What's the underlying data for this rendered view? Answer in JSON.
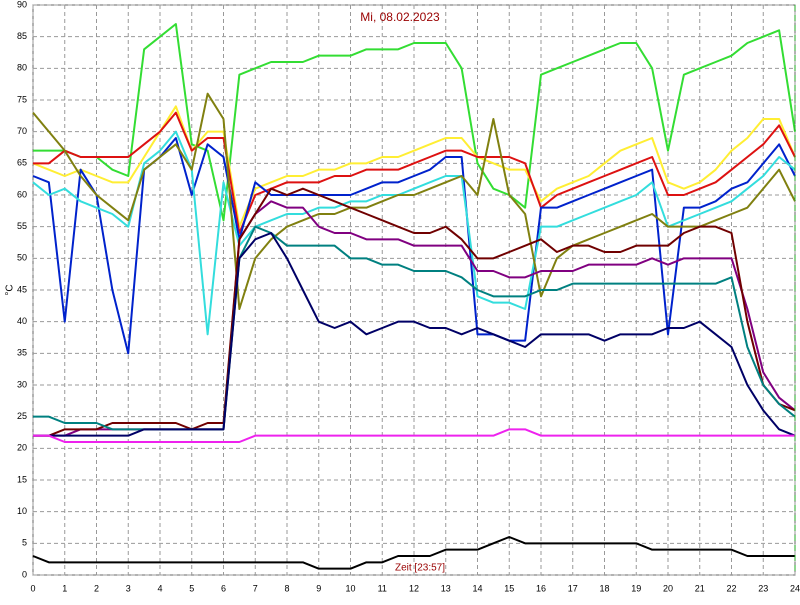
{
  "chart_data": {
    "type": "line",
    "title": "Mi, 08.02.2023",
    "y_label": "°C",
    "annotation": "Zeit [23:57]",
    "x": [
      0,
      0.5,
      1,
      1.5,
      2,
      2.5,
      3,
      3.5,
      4,
      4.5,
      5,
      5.5,
      6,
      6.5,
      7,
      7.5,
      8,
      8.5,
      9,
      9.5,
      10,
      10.5,
      11,
      11.5,
      12,
      12.5,
      13,
      13.5,
      14,
      14.5,
      15,
      15.5,
      16,
      16.5,
      17,
      17.5,
      18,
      18.5,
      19,
      19.5,
      20,
      20.5,
      21,
      21.5,
      22,
      22.5,
      23,
      23.5,
      24
    ],
    "xlim": [
      0,
      24
    ],
    "xticks": [
      0,
      1,
      2,
      3,
      4,
      5,
      6,
      7,
      8,
      9,
      10,
      11,
      12,
      13,
      14,
      15,
      16,
      17,
      18,
      19,
      20,
      21,
      22,
      23,
      24
    ],
    "ylim": [
      0,
      90
    ],
    "yticks": [
      0,
      5,
      10,
      15,
      20,
      25,
      30,
      35,
      40,
      45,
      50,
      55,
      60,
      65,
      70,
      75,
      80,
      85,
      90
    ],
    "grid": true,
    "series": [
      {
        "color": "#33dd33",
        "values": [
          67,
          67,
          67,
          66,
          66,
          64,
          63,
          83,
          85,
          87,
          68,
          67,
          56,
          79,
          80,
          81,
          81,
          81,
          82,
          82,
          82,
          83,
          83,
          83,
          84,
          84,
          84,
          80,
          65,
          61,
          60,
          58,
          79,
          80,
          81,
          82,
          83,
          84,
          84,
          80,
          67,
          79,
          80,
          81,
          82,
          84,
          85,
          86,
          70
        ]
      },
      {
        "color": "#ffee33",
        "values": [
          65,
          64,
          63,
          64,
          63,
          62,
          62,
          66,
          70,
          74,
          67,
          70,
          70,
          55,
          61,
          62,
          63,
          63,
          64,
          64,
          65,
          65,
          66,
          66,
          67,
          68,
          69,
          69,
          66,
          65,
          64,
          64,
          59,
          61,
          62,
          63,
          65,
          67,
          68,
          69,
          62,
          61,
          62,
          64,
          67,
          69,
          72,
          72,
          66
        ]
      },
      {
        "color": "#dd1111",
        "values": [
          65,
          65,
          67,
          66,
          66,
          66,
          66,
          68,
          70,
          73,
          67,
          69,
          69,
          54,
          60,
          61,
          62,
          62,
          62,
          63,
          63,
          64,
          64,
          64,
          65,
          66,
          67,
          67,
          66,
          66,
          66,
          65,
          58,
          60,
          61,
          62,
          63,
          64,
          65,
          66,
          60,
          60,
          61,
          62,
          64,
          66,
          68,
          71,
          66
        ]
      },
      {
        "color": "#0022cc",
        "values": [
          63,
          62,
          40,
          64,
          60,
          45,
          35,
          64,
          66,
          69,
          60,
          68,
          66,
          53,
          62,
          60,
          60,
          60,
          60,
          60,
          60,
          61,
          62,
          62,
          63,
          64,
          66,
          66,
          38,
          38,
          37,
          37,
          58,
          58,
          59,
          60,
          61,
          62,
          63,
          64,
          38,
          58,
          58,
          59,
          61,
          62,
          65,
          68,
          63
        ]
      },
      {
        "color": "#33dddd",
        "values": [
          62,
          60,
          61,
          59,
          58,
          57,
          55,
          65,
          67,
          70,
          64,
          38,
          62,
          52,
          55,
          56,
          57,
          57,
          58,
          58,
          59,
          59,
          60,
          60,
          61,
          62,
          63,
          63,
          44,
          43,
          43,
          42,
          55,
          55,
          56,
          57,
          58,
          59,
          60,
          62,
          55,
          56,
          57,
          58,
          59,
          61,
          63,
          66,
          64
        ]
      },
      {
        "color": "#808010",
        "values": [
          73,
          70,
          67,
          63,
          60,
          58,
          56,
          64,
          66,
          68,
          64,
          76,
          72,
          42,
          50,
          53,
          55,
          56,
          57,
          57,
          58,
          58,
          59,
          60,
          60,
          61,
          62,
          63,
          60,
          72,
          60,
          57,
          44,
          50,
          52,
          53,
          54,
          55,
          56,
          57,
          55,
          55,
          55,
          56,
          57,
          58,
          61,
          64,
          59
        ]
      },
      {
        "color": "#800080",
        "values": [
          22,
          22,
          22,
          23,
          23,
          23,
          23,
          23,
          23,
          23,
          23,
          23,
          23,
          53,
          57,
          59,
          58,
          58,
          55,
          54,
          54,
          53,
          53,
          53,
          52,
          52,
          52,
          52,
          48,
          48,
          47,
          47,
          48,
          48,
          48,
          49,
          49,
          49,
          49,
          50,
          49,
          50,
          50,
          50,
          50,
          42,
          32,
          28,
          26
        ]
      },
      {
        "color": "#700000",
        "values": [
          22,
          22,
          23,
          23,
          23,
          24,
          24,
          24,
          24,
          24,
          23,
          24,
          24,
          53,
          57,
          61,
          60,
          61,
          60,
          59,
          58,
          57,
          56,
          55,
          54,
          54,
          55,
          53,
          50,
          50,
          51,
          52,
          53,
          51,
          52,
          52,
          51,
          51,
          52,
          52,
          52,
          54,
          55,
          55,
          54,
          40,
          30,
          27,
          26
        ]
      },
      {
        "color": "#008080",
        "values": [
          25,
          25,
          24,
          24,
          24,
          23,
          23,
          23,
          23,
          23,
          23,
          23,
          23,
          50,
          55,
          54,
          52,
          52,
          52,
          52,
          50,
          50,
          49,
          49,
          48,
          48,
          48,
          47,
          45,
          44,
          44,
          44,
          45,
          45,
          46,
          46,
          46,
          46,
          46,
          46,
          46,
          46,
          46,
          46,
          47,
          36,
          30,
          27,
          25
        ]
      },
      {
        "color": "#000066",
        "values": [
          22,
          22,
          22,
          22,
          22,
          22,
          22,
          23,
          23,
          23,
          23,
          23,
          23,
          50,
          53,
          54,
          50,
          45,
          40,
          39,
          40,
          38,
          39,
          40,
          40,
          39,
          39,
          38,
          39,
          38,
          37,
          36,
          38,
          38,
          38,
          38,
          37,
          38,
          38,
          38,
          39,
          39,
          40,
          38,
          36,
          30,
          26,
          23,
          22
        ]
      },
      {
        "color": "#ee22ee",
        "values": [
          22,
          22,
          21,
          21,
          21,
          21,
          21,
          21,
          21,
          21,
          21,
          21,
          21,
          21,
          22,
          22,
          22,
          22,
          22,
          22,
          22,
          22,
          22,
          22,
          22,
          22,
          22,
          22,
          22,
          22,
          23,
          23,
          22,
          22,
          22,
          22,
          22,
          22,
          22,
          22,
          22,
          22,
          22,
          22,
          22,
          22,
          22,
          22,
          22
        ]
      },
      {
        "color": "#000000",
        "values": [
          3,
          2,
          2,
          2,
          2,
          2,
          2,
          2,
          2,
          2,
          2,
          2,
          2,
          2,
          2,
          2,
          2,
          2,
          1,
          1,
          1,
          2,
          2,
          3,
          3,
          3,
          4,
          4,
          4,
          5,
          6,
          5,
          5,
          5,
          5,
          5,
          5,
          5,
          5,
          4,
          4,
          4,
          4,
          4,
          4,
          3,
          3,
          3,
          3
        ]
      }
    ]
  }
}
